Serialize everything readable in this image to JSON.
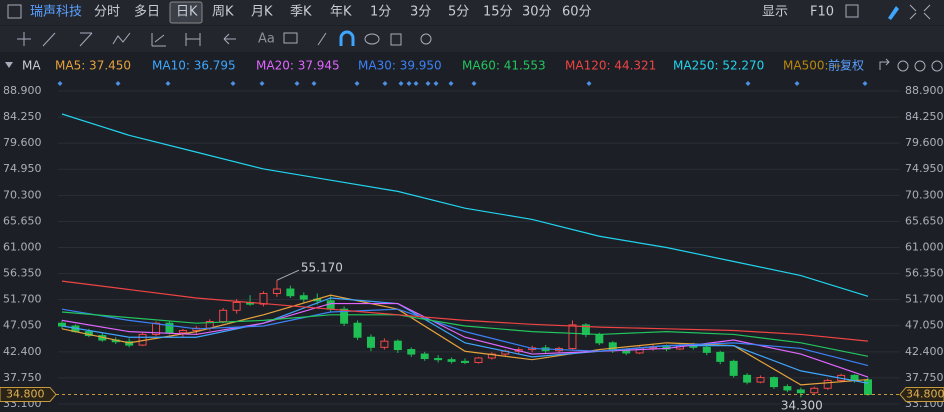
{
  "toolbar": {
    "stock": "瑞声科技",
    "tabs": [
      "分时",
      "多日",
      "日K",
      "周K",
      "月K",
      "季K",
      "年K",
      "1分",
      "3分",
      "5分",
      "15分",
      "30分",
      "60分"
    ],
    "selected": "日K",
    "right": [
      "显示",
      "F10"
    ],
    "tool_text": "Aa"
  },
  "chart_data": {
    "type": "candlestick",
    "indicator": "MA",
    "adjust": "前复权",
    "ylim": [
      31.67,
      90.86
    ],
    "yticks": [
      {
        "value": 88.9,
        "label": "88.900"
      },
      {
        "value": 84.25,
        "label": "84.250"
      },
      {
        "value": 79.6,
        "label": "79.600"
      },
      {
        "value": 74.95,
        "label": "74.950"
      },
      {
        "value": 70.3,
        "label": "70.300"
      },
      {
        "value": 65.65,
        "label": "65.650"
      },
      {
        "value": 61,
        "label": "61.000"
      },
      {
        "value": 56.35,
        "label": "56.350"
      },
      {
        "value": 51.7,
        "label": "51.700"
      },
      {
        "value": 47.05,
        "label": "47.050"
      },
      {
        "value": 42.4,
        "label": "42.400"
      },
      {
        "value": 37.75,
        "label": "37.750"
      },
      {
        "value": 33.1,
        "label": "33.100"
      }
    ],
    "candles": [
      [
        47.5,
        48,
        46.5,
        47
      ],
      [
        47,
        47.3,
        45.8,
        46
      ],
      [
        46,
        46.5,
        45,
        45.3
      ],
      [
        45.3,
        45.8,
        44.2,
        44.5
      ],
      [
        44.5,
        45,
        43.8,
        44.2
      ],
      [
        44.2,
        44.8,
        43.2,
        43.6
      ],
      [
        43.6,
        45.8,
        43.4,
        45.5
      ],
      [
        45.5,
        47.8,
        45.2,
        47.5
      ],
      [
        47.5,
        47.8,
        45.5,
        45.8
      ],
      [
        45.8,
        46.5,
        45,
        46.2
      ],
      [
        46.2,
        47,
        45.6,
        46.6
      ],
      [
        46.6,
        48.2,
        46.2,
        47.8
      ],
      [
        47.8,
        50.2,
        47.5,
        49.8
      ],
      [
        49.8,
        51.8,
        49.2,
        51.2
      ],
      [
        51.2,
        52.5,
        50.6,
        50.9
      ],
      [
        50.9,
        53.2,
        50.5,
        52.8
      ],
      [
        52.8,
        55.17,
        52.2,
        53.6
      ],
      [
        53.6,
        54.2,
        52,
        52.4
      ],
      [
        52.4,
        53,
        51.2,
        51.8
      ],
      [
        51.8,
        52.8,
        50.8,
        51.5
      ],
      [
        51.5,
        52.6,
        49.5,
        50
      ],
      [
        50,
        50.5,
        47,
        47.5
      ],
      [
        47.5,
        48,
        44.5,
        45
      ],
      [
        45,
        45.5,
        42.5,
        43.2
      ],
      [
        43.2,
        44.8,
        42.8,
        44.3
      ],
      [
        44.3,
        44.6,
        42.2,
        42.8
      ],
      [
        42.8,
        43.2,
        41.5,
        42
      ],
      [
        42,
        42.4,
        40.8,
        41.2
      ],
      [
        41.2,
        41.8,
        40.5,
        41
      ],
      [
        41,
        41.4,
        40.3,
        40.7
      ],
      [
        40.7,
        41.2,
        40.2,
        40.5
      ],
      [
        40.5,
        41.5,
        40.3,
        41.3
      ],
      [
        41.3,
        42.3,
        41,
        42
      ],
      [
        42,
        42.8,
        41.6,
        42.5
      ],
      [
        42.5,
        43.2,
        42,
        42.8
      ],
      [
        42.8,
        43.5,
        42.3,
        43.1
      ],
      [
        43.1,
        43.6,
        42.2,
        42.6
      ],
      [
        42.6,
        43.3,
        42.2,
        43
      ],
      [
        43,
        48,
        42.8,
        47.2
      ],
      [
        47.2,
        47.5,
        45,
        45.5
      ],
      [
        45.5,
        45.8,
        43.6,
        44
      ],
      [
        44,
        44.3,
        42.2,
        42.6
      ],
      [
        42.6,
        43,
        41.8,
        42.2
      ],
      [
        42.2,
        43.4,
        42,
        43.1
      ],
      [
        43.1,
        43.8,
        42.6,
        43.3
      ],
      [
        43.3,
        43.7,
        42.5,
        42.9
      ],
      [
        42.9,
        43.9,
        42.7,
        43.6
      ],
      [
        43.6,
        44,
        42.8,
        43.2
      ],
      [
        43.2,
        43.5,
        41.8,
        42.3
      ],
      [
        42.3,
        42.6,
        40.2,
        40.7
      ],
      [
        40.7,
        41,
        37.8,
        38.2
      ],
      [
        38.2,
        38.6,
        36.6,
        37
      ],
      [
        37,
        38.2,
        36.8,
        37.8
      ],
      [
        37.8,
        38,
        35.8,
        36.2
      ],
      [
        36.2,
        36.6,
        35.2,
        35.6
      ],
      [
        35.6,
        36,
        34.3,
        35.1
      ],
      [
        35.1,
        36.2,
        34.9,
        35.9
      ],
      [
        35.9,
        37.6,
        35.6,
        37.3
      ],
      [
        37.3,
        38.5,
        37,
        38.2
      ],
      [
        38.2,
        38.4,
        36.9,
        37.4
      ],
      [
        37.4,
        37.8,
        34.6,
        34.8
      ]
    ],
    "up_color": "#f04848",
    "down_color": "#1fbf55",
    "ma_points": [
      0,
      5,
      10,
      15,
      20,
      25,
      30,
      35,
      40,
      45,
      50,
      55,
      60
    ],
    "series": [
      {
        "name": "MA5: 37.450",
        "color": "#e6a23c",
        "values": [
          46.5,
          44,
          46,
          49,
          52.5,
          50,
          42.5,
          41,
          42.8,
          44,
          43.5,
          36.5,
          37.45
        ]
      },
      {
        "name": "MA10: 36.795",
        "color": "#3ea6ff",
        "values": [
          47,
          45,
          45,
          47.5,
          52,
          51,
          44,
          41.5,
          42.5,
          43.5,
          43.5,
          39,
          36.8
        ]
      },
      {
        "name": "MA20: 37.945",
        "color": "#e066ff",
        "values": [
          48,
          46,
          45.5,
          47.5,
          51,
          51,
          45,
          42,
          42.5,
          43,
          44.5,
          42,
          37.9
        ]
      },
      {
        "name": "MA30: 39.950",
        "color": "#3b82f6",
        "values": [
          50,
          48,
          46.5,
          47,
          49.5,
          50,
          46,
          43,
          42.5,
          43.5,
          44,
          43,
          39.95
        ]
      },
      {
        "name": "MA60: 41.553",
        "color": "#22c55e",
        "values": [
          49.5,
          48.5,
          47.5,
          48,
          49,
          49,
          47,
          46,
          45.5,
          46,
          45.5,
          44,
          41.6
        ]
      },
      {
        "name": "MA120: 44.321",
        "color": "#ef4444",
        "values": [
          55,
          53.5,
          52,
          51,
          50,
          49,
          48,
          47.3,
          46.8,
          46.5,
          46.2,
          45.5,
          44.3
        ]
      },
      {
        "name": "MA250: 52.270",
        "color": "#22d3ee",
        "values": [
          84.8,
          81,
          78,
          75,
          73,
          71,
          68,
          66,
          63,
          61,
          58.5,
          56,
          52.3
        ]
      },
      {
        "name": "MA500: --",
        "color": "#b8860b",
        "values": []
      }
    ],
    "high": {
      "value": 55.17,
      "label": "55.170"
    },
    "low": {
      "value": 34.3,
      "label": "34.300"
    },
    "last": {
      "value": 34.8,
      "label": "34.800"
    }
  }
}
